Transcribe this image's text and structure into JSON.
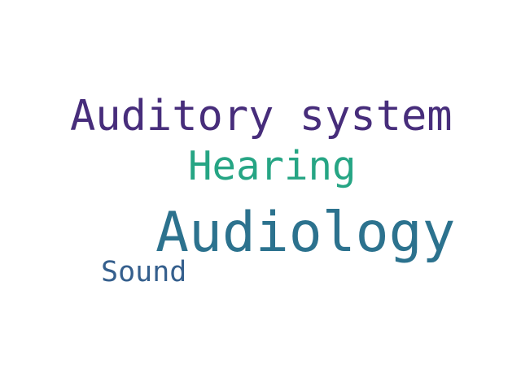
{
  "words": [
    {
      "text": "Auditory system",
      "color": "#472d7b"
    },
    {
      "text": "Hearing",
      "color": "#26a584"
    },
    {
      "text": "Audiology",
      "color": "#2c728e"
    },
    {
      "text": "Sound",
      "color": "#355f8d"
    }
  ]
}
